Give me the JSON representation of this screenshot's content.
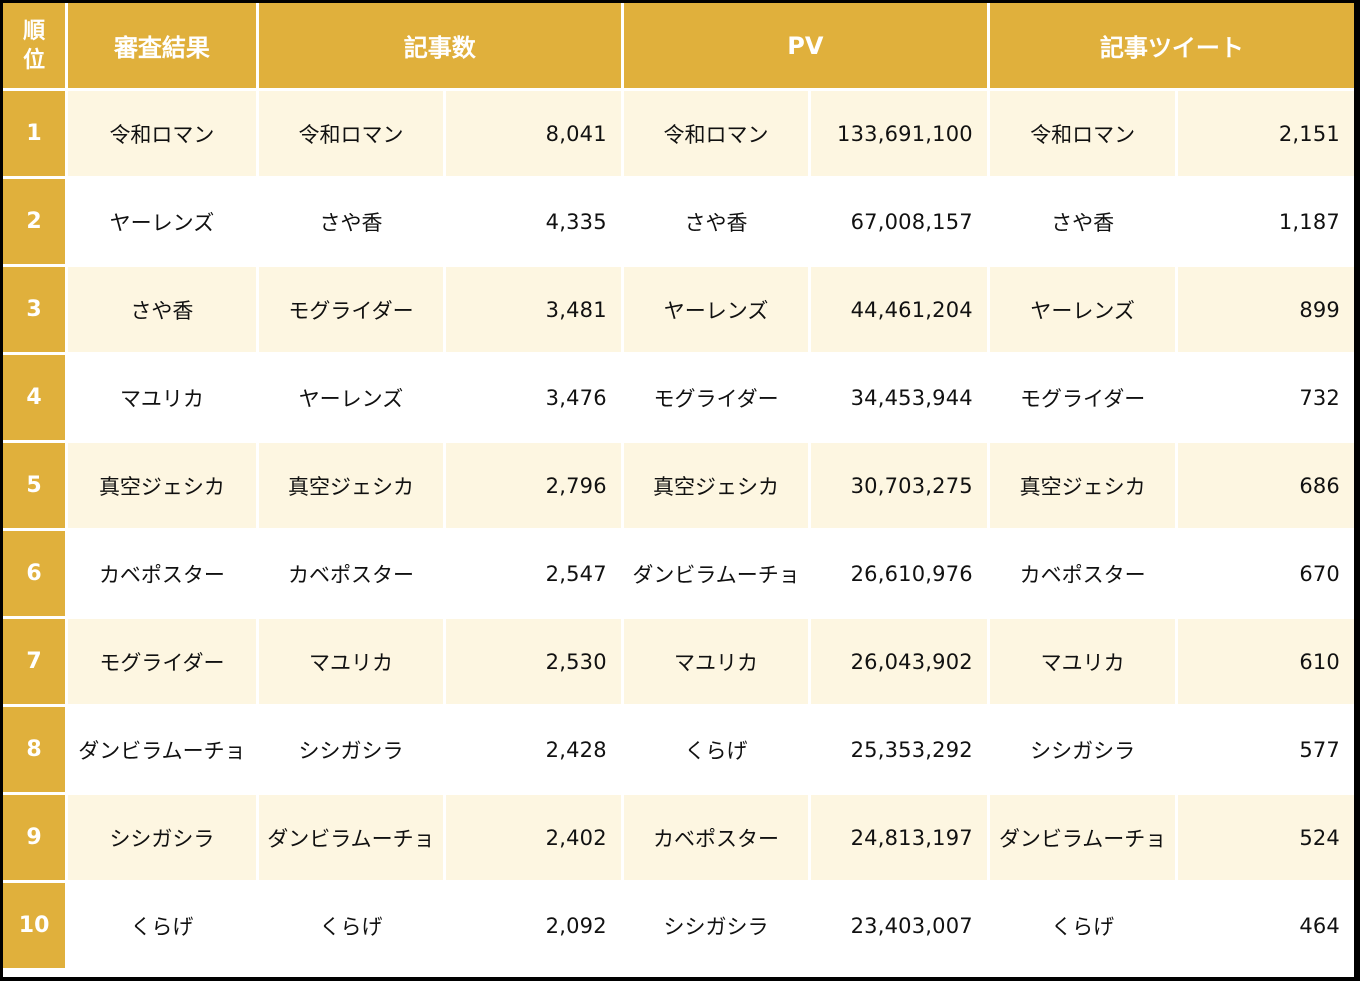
{
  "header": {
    "rank": "順\n位",
    "rank_line1": "順",
    "rank_line2": "位",
    "result": "審査結果",
    "articles": "記事数",
    "pv": "PV",
    "tweets": "記事ツイート"
  },
  "colors": {
    "header_bg": "#e0b03c",
    "odd_row_bg": "#fdf6e1",
    "even_row_bg": "#ffffff",
    "header_text": "#ffffff"
  },
  "rows": [
    {
      "rank": "1",
      "result": "令和ロマン",
      "articles_name": "令和ロマン",
      "articles_value": "8,041",
      "pv_name": "令和ロマン",
      "pv_value": "133,691,100",
      "tweets_name": "令和ロマン",
      "tweets_value": "2,151"
    },
    {
      "rank": "2",
      "result": "ヤーレンズ",
      "articles_name": "さや香",
      "articles_value": "4,335",
      "pv_name": "さや香",
      "pv_value": "67,008,157",
      "tweets_name": "さや香",
      "tweets_value": "1,187"
    },
    {
      "rank": "3",
      "result": "さや香",
      "articles_name": "モグライダー",
      "articles_value": "3,481",
      "pv_name": "ヤーレンズ",
      "pv_value": "44,461,204",
      "tweets_name": "ヤーレンズ",
      "tweets_value": "899"
    },
    {
      "rank": "4",
      "result": "マユリカ",
      "articles_name": "ヤーレンズ",
      "articles_value": "3,476",
      "pv_name": "モグライダー",
      "pv_value": "34,453,944",
      "tweets_name": "モグライダー",
      "tweets_value": "732"
    },
    {
      "rank": "5",
      "result": "真空ジェシカ",
      "articles_name": "真空ジェシカ",
      "articles_value": "2,796",
      "pv_name": "真空ジェシカ",
      "pv_value": "30,703,275",
      "tweets_name": "真空ジェシカ",
      "tweets_value": "686"
    },
    {
      "rank": "6",
      "result": "カベポスター",
      "articles_name": "カベポスター",
      "articles_value": "2,547",
      "pv_name": "ダンビラムーチョ",
      "pv_value": "26,610,976",
      "tweets_name": "カベポスター",
      "tweets_value": "670"
    },
    {
      "rank": "7",
      "result": "モグライダー",
      "articles_name": "マユリカ",
      "articles_value": "2,530",
      "pv_name": "マユリカ",
      "pv_value": "26,043,902",
      "tweets_name": "マユリカ",
      "tweets_value": "610"
    },
    {
      "rank": "8",
      "result": "ダンビラムーチョ",
      "articles_name": "シシガシラ",
      "articles_value": "2,428",
      "pv_name": "くらげ",
      "pv_value": "25,353,292",
      "tweets_name": "シシガシラ",
      "tweets_value": "577"
    },
    {
      "rank": "9",
      "result": "シシガシラ",
      "articles_name": "ダンビラムーチョ",
      "articles_value": "2,402",
      "pv_name": "カベポスター",
      "pv_value": "24,813,197",
      "tweets_name": "ダンビラムーチョ",
      "tweets_value": "524"
    },
    {
      "rank": "10",
      "result": "くらげ",
      "articles_name": "くらげ",
      "articles_value": "2,092",
      "pv_name": "シシガシラ",
      "pv_value": "23,403,007",
      "tweets_name": "くらげ",
      "tweets_value": "464"
    }
  ]
}
